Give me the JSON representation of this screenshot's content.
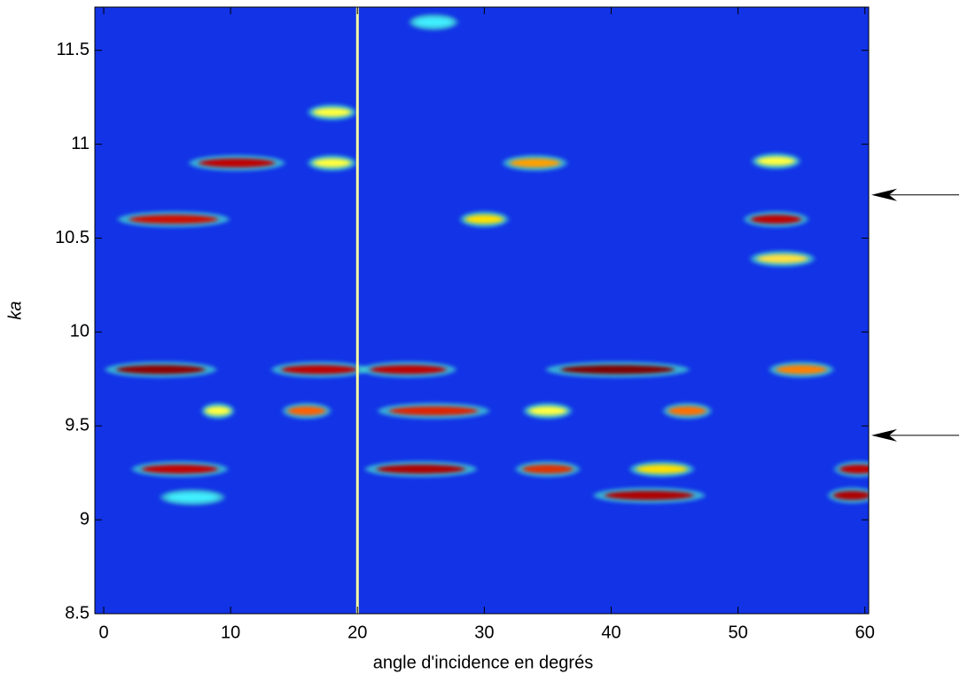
{
  "chart_data": {
    "type": "heatmap",
    "xlabel": "angle d'incidence en degrés",
    "ylabel": "ka",
    "xlim": [
      -0.7,
      60.3
    ],
    "ylim": [
      8.5,
      11.73
    ],
    "xticks": [
      0,
      10,
      20,
      30,
      40,
      50,
      60
    ],
    "yticks": [
      8.5,
      9,
      9.5,
      10,
      10.5,
      11,
      11.5
    ],
    "background": "#1233e6",
    "band_color": "#3fa8ff",
    "bands": [
      9.13,
      9.27,
      9.57,
      9.8,
      10.6,
      10.9,
      11.15,
      10.4
    ],
    "hotspots": [
      {
        "x": 6,
        "y": 9.27,
        "w": 6,
        "color": "#c40000"
      },
      {
        "x": 25,
        "y": 9.27,
        "w": 7,
        "color": "#b00000"
      },
      {
        "x": 35,
        "y": 9.27,
        "w": 4,
        "color": "#e03000"
      },
      {
        "x": 44,
        "y": 9.27,
        "w": 4,
        "color": "#ffe000"
      },
      {
        "x": 59.5,
        "y": 9.27,
        "w": 3,
        "color": "#c00000"
      },
      {
        "x": 7,
        "y": 9.12,
        "w": 4,
        "color": "#40f0ff"
      },
      {
        "x": 43,
        "y": 9.13,
        "w": 7,
        "color": "#b00000"
      },
      {
        "x": 59,
        "y": 9.13,
        "w": 3,
        "color": "#b00000"
      },
      {
        "x": 9,
        "y": 9.58,
        "w": 2,
        "color": "#ffff40"
      },
      {
        "x": 16,
        "y": 9.58,
        "w": 3,
        "color": "#ff6000"
      },
      {
        "x": 26,
        "y": 9.58,
        "w": 7,
        "color": "#e02000"
      },
      {
        "x": 35,
        "y": 9.58,
        "w": 3,
        "color": "#ffff40"
      },
      {
        "x": 46,
        "y": 9.58,
        "w": 3,
        "color": "#ff7000"
      },
      {
        "x": 4.5,
        "y": 9.8,
        "w": 7,
        "color": "#900000"
      },
      {
        "x": 17,
        "y": 9.8,
        "w": 6,
        "color": "#c00000"
      },
      {
        "x": 24,
        "y": 9.8,
        "w": 6,
        "color": "#c00000"
      },
      {
        "x": 40.5,
        "y": 9.8,
        "w": 9,
        "color": "#800000"
      },
      {
        "x": 55,
        "y": 9.8,
        "w": 4,
        "color": "#ff8000"
      },
      {
        "x": 5.5,
        "y": 10.6,
        "w": 7,
        "color": "#d01000"
      },
      {
        "x": 30,
        "y": 10.6,
        "w": 3,
        "color": "#ffe000"
      },
      {
        "x": 53,
        "y": 10.6,
        "w": 4,
        "color": "#c00000"
      },
      {
        "x": 53.5,
        "y": 10.39,
        "w": 4,
        "color": "#ffe040"
      },
      {
        "x": 10.5,
        "y": 10.9,
        "w": 6,
        "color": "#c00000"
      },
      {
        "x": 18,
        "y": 10.9,
        "w": 3,
        "color": "#ffff40"
      },
      {
        "x": 34,
        "y": 10.9,
        "w": 4,
        "color": "#ffa000"
      },
      {
        "x": 53,
        "y": 10.91,
        "w": 3,
        "color": "#ffff40"
      },
      {
        "x": 18,
        "y": 11.17,
        "w": 3,
        "color": "#ffff40"
      },
      {
        "x": 26,
        "y": 11.65,
        "w": 3,
        "color": "#40f0ff"
      }
    ],
    "vline": 20,
    "vline_color": "#ffffa0",
    "arrows": [
      10.73,
      9.45
    ]
  }
}
